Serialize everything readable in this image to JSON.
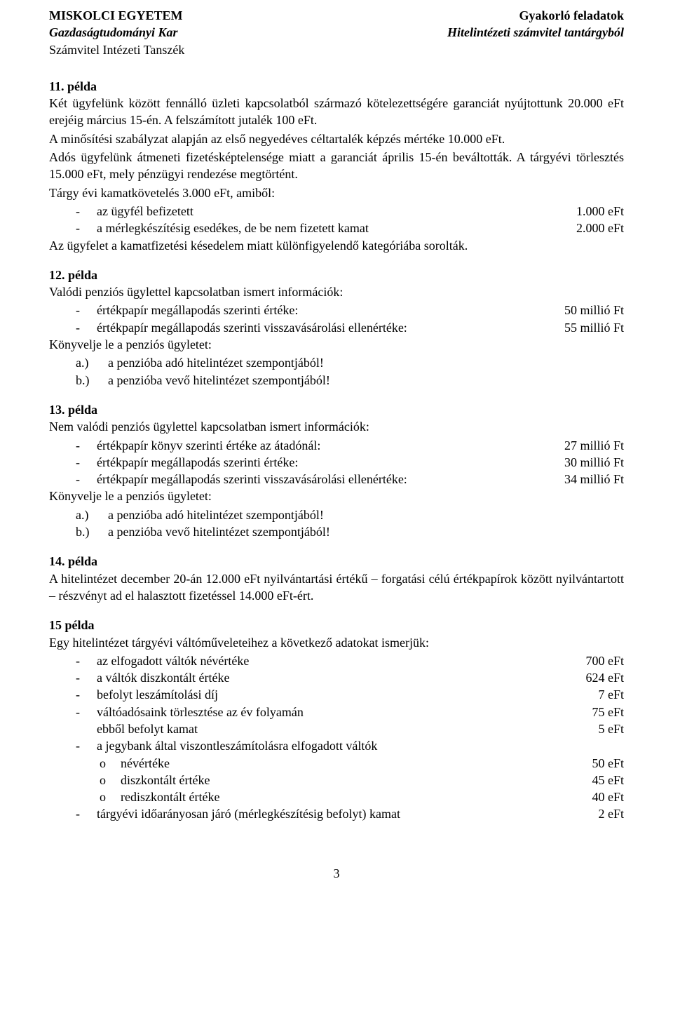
{
  "header": {
    "left1": "MISKOLCI EGYETEM",
    "left2": "Gazdaságtudományi Kar",
    "left3": "Számvitel Intézeti Tanszék",
    "right1": "Gyakorló feladatok",
    "right2": "Hitelintézeti számvitel tantárgyból"
  },
  "ex11": {
    "title": "11. példa",
    "p1": "Két ügyfelünk között fennálló üzleti kapcsolatból származó kötelezettségére garanciát nyújtottunk 20.000 eFt erejéig március 15-én. A felszámított jutalék 100 eFt.",
    "p2": "A minősítési szabályzat alapján az első negyedéves céltartalék képzés mértéke 10.000 eFt.",
    "p3": "Adós ügyfelünk átmeneti fizetésképtelensége miatt a garanciát április 15-én beváltották. A tárgyévi törlesztés 15.000 eFt, mely pénzügyi rendezése megtörtént.",
    "p4": "Tárgy évi kamatkövetelés 3.000 eFt, amiből:",
    "i1_label": "az ügyfél befizetett",
    "i1_val": "1.000 eFt",
    "i2_label": "a mérlegkészítésig esedékes, de be nem fizetett kamat",
    "i2_val": "2.000 eFt",
    "p5": "Az ügyfelet a kamatfizetési késedelem miatt különfigyelendő kategóriába sorolták."
  },
  "ex12": {
    "title": "12. példa",
    "intro": "Valódi penziós ügylettel kapcsolatban ismert információk:",
    "i1_label": "értékpapír megállapodás szerinti értéke:",
    "i1_val": "50 millió Ft",
    "i2_label": "értékpapír megállapodás szerinti visszavásárolási ellenértéke:",
    "i2_val": "55 millió Ft",
    "task": "Könyvelje le a penziós ügyletet:",
    "a_label": "a.)",
    "a_txt": "a penzióba adó hitelintézet szempontjából!",
    "b_label": "b.)",
    "b_txt": "a penzióba vevő hitelintézet szempontjából!"
  },
  "ex13": {
    "title": "13. példa",
    "intro": "Nem valódi penziós ügylettel kapcsolatban ismert információk:",
    "i1_label": "értékpapír könyv szerinti értéke az átadónál:",
    "i1_val": "27 millió Ft",
    "i2_label": "értékpapír megállapodás szerinti értéke:",
    "i2_val": "30 millió Ft",
    "i3_label": "értékpapír megállapodás szerinti visszavásárolási ellenértéke:",
    "i3_val": "34 millió Ft",
    "task": "Könyvelje le a penziós ügyletet:",
    "a_label": "a.)",
    "a_txt": "a penzióba adó hitelintézet szempontjából!",
    "b_label": "b.)",
    "b_txt": "a penzióba vevő hitelintézet szempontjából!"
  },
  "ex14": {
    "title": "14. példa",
    "p1": "A hitelintézet december 20-án 12.000 eFt nyilvántartási értékű – forgatási célú értékpapírok között nyilvántartott – részvényt ad el halasztott fizetéssel 14.000 eFt-ért."
  },
  "ex15": {
    "title": "15 példa",
    "intro": "Egy hitelintézet tárgyévi váltóműveleteihez a következő adatokat ismerjük:",
    "r1_label": "az elfogadott váltók névértéke",
    "r1_val": "700 eFt",
    "r2_label": "a váltók diszkontált értéke",
    "r2_val": "624 eFt",
    "r3_label": "befolyt leszámítolási díj",
    "r3_val": "7 eFt",
    "r4_label": "váltóadósaink törlesztése az év folyamán",
    "r4_val": "75 eFt",
    "r4a_label": "ebből befolyt kamat",
    "r4a_val": "5 eFt",
    "r5_label": "a jegybank által viszontleszámítolásra elfogadott váltók",
    "r5a_label": "névértéke",
    "r5a_val": "50 eFt",
    "r5b_label": "diszkontált értéke",
    "r5b_val": "45 eFt",
    "r5c_label": "rediszkontált értéke",
    "r5c_val": "40 eFt",
    "r6_label": "tárgyévi időarányosan járó (mérlegkészítésig befolyt) kamat",
    "r6_val": "2 eFt"
  },
  "page_number": "3",
  "glyphs": {
    "dash": "-",
    "circ": "o"
  }
}
